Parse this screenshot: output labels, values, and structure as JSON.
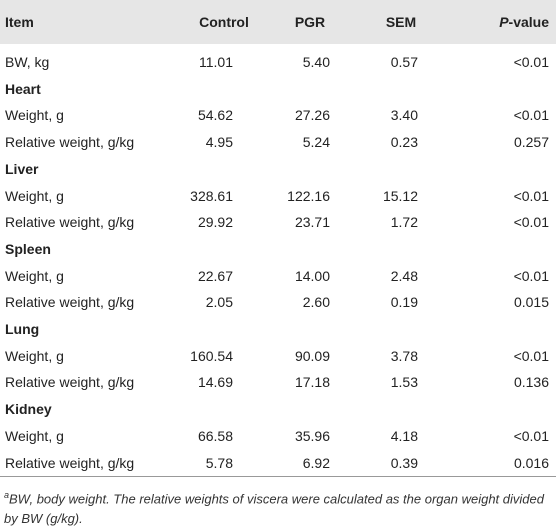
{
  "table": {
    "headers": [
      "Item",
      "Control",
      "PGR",
      "SEM",
      {
        "italic": "P",
        "rest": "-value"
      }
    ],
    "rows": [
      [
        "BW, kg",
        "11.01",
        "5.40",
        "0.57",
        "<0.01"
      ],
      [
        "Heart"
      ],
      [
        "Weight, g",
        "54.62",
        "27.26",
        "3.40",
        "<0.01"
      ],
      [
        "Relative weight, g/kg",
        "4.95",
        "5.24",
        "0.23",
        "0.257"
      ],
      [
        "Liver"
      ],
      [
        "Weight, g",
        "328.61",
        "122.16",
        "15.12",
        "<0.01"
      ],
      [
        "Relative weight, g/kg",
        "29.92",
        "23.71",
        "1.72",
        "<0.01"
      ],
      [
        "Spleen"
      ],
      [
        "Weight, g",
        "22.67",
        "14.00",
        "2.48",
        "<0.01"
      ],
      [
        "Relative weight, g/kg",
        "2.05",
        "2.60",
        "0.19",
        "0.015"
      ],
      [
        "Lung"
      ],
      [
        "Weight, g",
        "160.54",
        "90.09",
        "3.78",
        "<0.01"
      ],
      [
        "Relative weight, g/kg",
        "14.69",
        "17.18",
        "1.53",
        "0.136"
      ],
      [
        "Kidney"
      ],
      [
        "Weight, g",
        "66.58",
        "35.96",
        "4.18",
        "<0.01"
      ],
      [
        "Relative weight, g/kg",
        "5.78",
        "6.92",
        "0.39",
        "0.016"
      ]
    ],
    "footnote": {
      "mark": "a",
      "text": "BW, body weight. The relative weights of viscera were calculated as the organ weight divided by BW (g/kg)."
    }
  }
}
